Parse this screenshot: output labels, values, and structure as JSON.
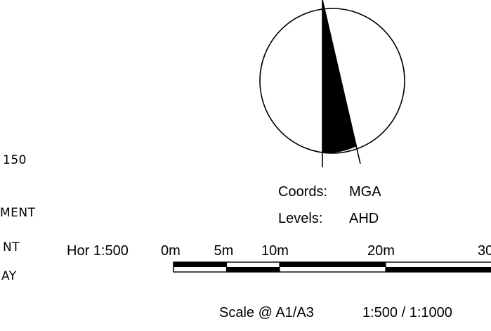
{
  "left_notes": {
    "line1": "150",
    "line2": "MENT",
    "line3": "NT",
    "line4": "AY"
  },
  "coords": {
    "label": "Coords:",
    "value": "MGA"
  },
  "levels": {
    "label": "Levels:",
    "value": "AHD"
  },
  "scale_bar": {
    "prefix": "Hor 1:500",
    "ticks": [
      {
        "label": "0m",
        "meters": 0
      },
      {
        "label": "5m",
        "meters": 5
      },
      {
        "label": "10m",
        "meters": 10
      },
      {
        "label": "20m",
        "meters": 20
      },
      {
        "label": "30",
        "meters": 30
      }
    ]
  },
  "scale_note": {
    "label": "Scale @ A1/A3",
    "value": "1:500 / 1:1000"
  },
  "colors": {
    "ink": "#000000",
    "paper": "#ffffff"
  },
  "icons": {
    "north_arrow": "north-arrow-icon"
  }
}
